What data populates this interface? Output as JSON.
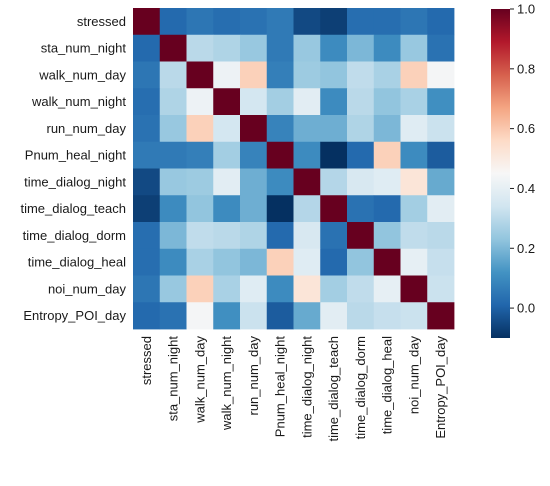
{
  "chart_data": {
    "type": "heatmap",
    "title": "",
    "xlabel": "",
    "ylabel": "",
    "labels": [
      "stressed",
      "sta_num_night",
      "walk_num_day",
      "walk_num_night",
      "run_num_day",
      "Pnum_heal_night",
      "time_dialog_night",
      "time_dialog_teach",
      "time_dialog_dorm",
      "time_dialog_heal",
      "noi_num_day",
      "Entropy_POI_day"
    ],
    "matrix": [
      [
        1.0,
        0.02,
        0.05,
        0.03,
        0.04,
        0.06,
        -0.05,
        -0.07,
        0.03,
        0.03,
        0.05,
        0.02
      ],
      [
        0.02,
        1.0,
        0.3,
        0.28,
        0.24,
        0.06,
        0.24,
        0.1,
        0.2,
        0.1,
        0.24,
        0.04
      ],
      [
        0.05,
        0.3,
        1.0,
        0.42,
        0.58,
        0.07,
        0.25,
        0.23,
        0.31,
        0.27,
        0.58,
        0.44
      ],
      [
        0.03,
        0.28,
        0.42,
        1.0,
        0.35,
        0.26,
        0.39,
        0.1,
        0.3,
        0.23,
        0.27,
        0.11
      ],
      [
        0.04,
        0.24,
        0.58,
        0.35,
        1.0,
        0.08,
        0.18,
        0.18,
        0.28,
        0.2,
        0.38,
        0.33
      ],
      [
        0.06,
        0.06,
        0.07,
        0.26,
        0.08,
        1.0,
        0.1,
        -0.1,
        0.02,
        0.58,
        0.1,
        -0.01
      ],
      [
        -0.05,
        0.24,
        0.25,
        0.39,
        0.18,
        0.1,
        1.0,
        0.29,
        0.36,
        0.38,
        0.52,
        0.17
      ],
      [
        -0.07,
        0.1,
        0.23,
        0.1,
        0.18,
        -0.1,
        0.29,
        1.0,
        0.04,
        0.02,
        0.26,
        0.39
      ],
      [
        0.03,
        0.2,
        0.31,
        0.3,
        0.28,
        0.02,
        0.36,
        0.04,
        1.0,
        0.23,
        0.31,
        0.3
      ],
      [
        0.03,
        0.1,
        0.27,
        0.23,
        0.2,
        0.58,
        0.38,
        0.02,
        0.23,
        1.0,
        0.4,
        0.32
      ],
      [
        0.05,
        0.24,
        0.58,
        0.27,
        0.38,
        0.1,
        0.52,
        0.26,
        0.31,
        0.4,
        1.0,
        0.33
      ],
      [
        0.02,
        0.04,
        0.44,
        0.11,
        0.33,
        -0.01,
        0.17,
        0.39,
        0.3,
        0.32,
        0.33,
        1.0
      ]
    ],
    "colorbar": {
      "range": [
        -0.1,
        1.0
      ],
      "ticks": [
        -0.0,
        0.2,
        0.4,
        0.6,
        0.8,
        1.0
      ],
      "tick_labels": [
        "0.0",
        "0.2",
        "0.4",
        "0.6",
        "0.8",
        "1.0"
      ],
      "colormap": "RdBu_r"
    },
    "grid": false,
    "legend": "colorbar-right"
  }
}
